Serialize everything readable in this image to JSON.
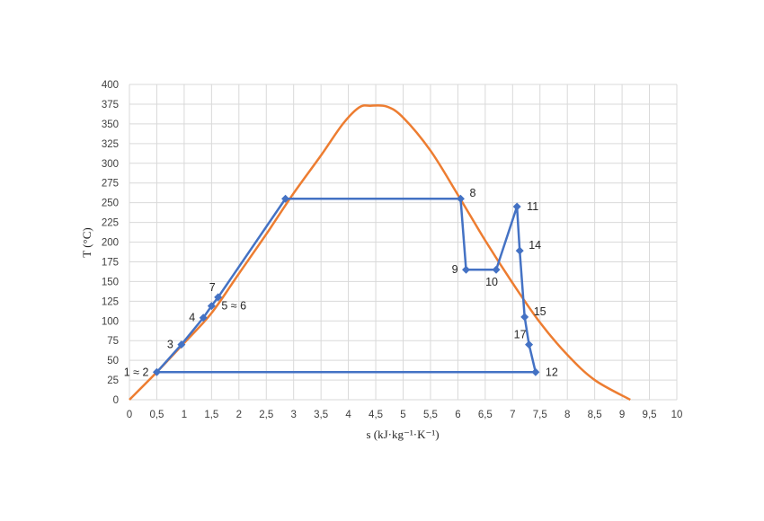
{
  "chart_data": {
    "type": "line",
    "title": "",
    "xlabel": "s (kJ·kg⁻¹·K⁻¹)",
    "ylabel": "T (°C)",
    "xlim": [
      0,
      10
    ],
    "ylim": [
      0,
      400
    ],
    "x_ticks": [
      "0",
      "0,5",
      "1",
      "1,5",
      "2",
      "2,5",
      "3",
      "3,5",
      "4",
      "4,5",
      "5",
      "5,5",
      "6",
      "6,5",
      "7",
      "7,5",
      "8",
      "8,5",
      "9",
      "9,5",
      "10"
    ],
    "y_ticks": [
      "0",
      "25",
      "50",
      "75",
      "100",
      "125",
      "150",
      "175",
      "200",
      "225",
      "250",
      "275",
      "300",
      "325",
      "350",
      "375",
      "400"
    ],
    "grid": true,
    "legend": "none",
    "colors": {
      "saturation_curve": "#ED7D31",
      "cycle": "#4472C4",
      "grid": "#D9D9D9"
    },
    "series": [
      {
        "points": [
          {
            "x": 0.0,
            "y": 0
          },
          {
            "x": 0.5,
            "y": 35
          },
          {
            "x": 1.0,
            "y": 72
          },
          {
            "x": 1.5,
            "y": 110
          },
          {
            "x": 2.0,
            "y": 160
          },
          {
            "x": 2.5,
            "y": 210
          },
          {
            "x": 3.0,
            "y": 262
          },
          {
            "x": 3.5,
            "y": 310
          },
          {
            "x": 3.9,
            "y": 350
          },
          {
            "x": 4.2,
            "y": 371
          },
          {
            "x": 4.4,
            "y": 373
          },
          {
            "x": 4.7,
            "y": 372
          },
          {
            "x": 5.0,
            "y": 358
          },
          {
            "x": 5.5,
            "y": 316
          },
          {
            "x": 6.0,
            "y": 260
          },
          {
            "x": 6.5,
            "y": 202
          },
          {
            "x": 7.0,
            "y": 148
          },
          {
            "x": 7.5,
            "y": 98
          },
          {
            "x": 8.0,
            "y": 57
          },
          {
            "x": 8.5,
            "y": 25
          },
          {
            "x": 9.15,
            "y": 0
          }
        ]
      },
      {
        "points": [
          {
            "x": 0.5,
            "y": 35
          },
          {
            "x": 0.95,
            "y": 70
          },
          {
            "x": 1.35,
            "y": 104
          },
          {
            "x": 1.5,
            "y": 119
          },
          {
            "x": 1.62,
            "y": 130
          },
          {
            "x": 2.85,
            "y": 255
          },
          {
            "x": 6.05,
            "y": 255
          },
          {
            "x": 6.15,
            "y": 165
          },
          {
            "x": 6.7,
            "y": 165
          },
          {
            "x": 7.08,
            "y": 245
          },
          {
            "x": 7.13,
            "y": 189
          },
          {
            "x": 7.22,
            "y": 105
          },
          {
            "x": 7.3,
            "y": 70
          },
          {
            "x": 7.42,
            "y": 35
          },
          {
            "x": 0.5,
            "y": 35
          }
        ],
        "markers": [
          {
            "x": 0.5,
            "y": 35,
            "label": "1 ≈ 2",
            "pos": "left"
          },
          {
            "x": 0.95,
            "y": 70,
            "label": "3",
            "pos": "left"
          },
          {
            "x": 1.35,
            "y": 104,
            "label": "4",
            "pos": "left"
          },
          {
            "x": 1.5,
            "y": 119,
            "label": "5 ≈ 6",
            "pos": "right"
          },
          {
            "x": 1.62,
            "y": 130,
            "label": "7",
            "pos": "upleft"
          },
          {
            "x": 2.85,
            "y": 255,
            "label": "",
            "pos": "none"
          },
          {
            "x": 6.05,
            "y": 255,
            "label": "8",
            "pos": "upright"
          },
          {
            "x": 6.15,
            "y": 165,
            "label": "9",
            "pos": "left"
          },
          {
            "x": 6.7,
            "y": 165,
            "label": "10",
            "pos": "downleft"
          },
          {
            "x": 7.08,
            "y": 245,
            "label": "11",
            "pos": "right"
          },
          {
            "x": 7.13,
            "y": 189,
            "label": "14",
            "pos": "upright"
          },
          {
            "x": 7.22,
            "y": 105,
            "label": "15",
            "pos": "upright"
          },
          {
            "x": 7.3,
            "y": 70,
            "label": "17",
            "pos": "upleft"
          },
          {
            "x": 7.42,
            "y": 35,
            "label": "12",
            "pos": "right"
          }
        ]
      }
    ]
  }
}
